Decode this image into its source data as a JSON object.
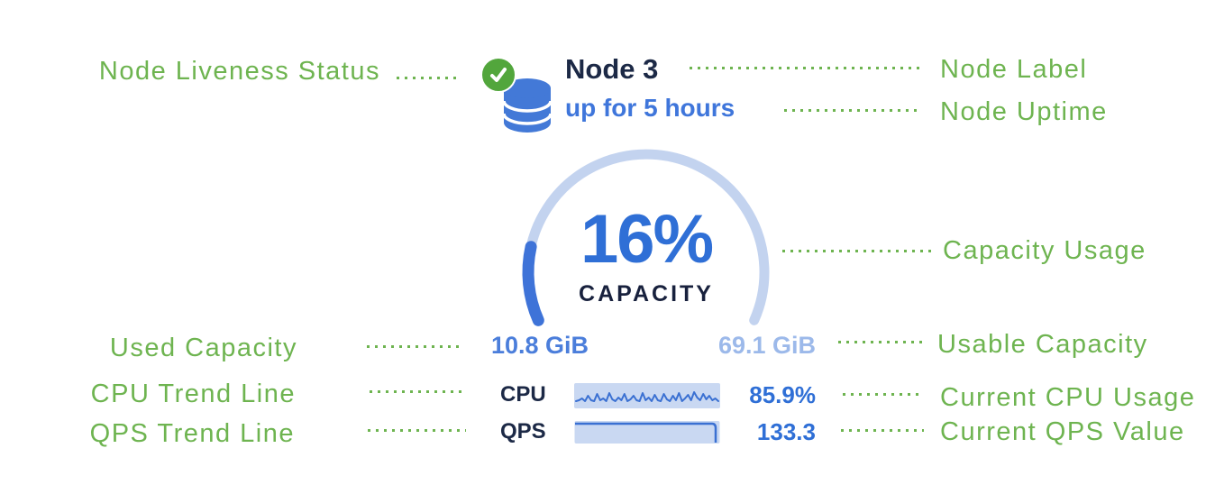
{
  "colors": {
    "green": "#6eb450",
    "navy": "#1c2946",
    "blue": "#2f6fd6",
    "blue-bright": "#3f76db",
    "blue-mid": "#4b7edb",
    "blue-light": "#9cb9ea",
    "track": "#c3d3ef",
    "fill": "#3e73d8",
    "spark-bg": "#c9d8f2",
    "spark-line": "#3a70d2",
    "icon-blue": "#4379d7",
    "check-green": "#52a63c"
  },
  "annotations": {
    "left": [
      {
        "id": "node-liveness-status",
        "label": "Node Liveness Status"
      },
      {
        "id": "used-capacity",
        "label": "Used Capacity"
      },
      {
        "id": "cpu-trend-line",
        "label": "CPU Trend Line"
      },
      {
        "id": "qps-trend-line",
        "label": "QPS Trend Line"
      }
    ],
    "right": [
      {
        "id": "node-label",
        "label": "Node Label"
      },
      {
        "id": "node-uptime",
        "label": "Node Uptime"
      },
      {
        "id": "capacity-usage",
        "label": "Capacity Usage"
      },
      {
        "id": "usable-capacity",
        "label": "Usable Capacity"
      },
      {
        "id": "current-cpu-usage",
        "label": "Current CPU Usage"
      },
      {
        "id": "current-qps-value",
        "label": "Current QPS Value"
      }
    ]
  },
  "node": {
    "label": "Node 3",
    "uptime": "up for 5 hours",
    "capacity_percent": "16%",
    "capacity_percent_value": 16,
    "capacity_label": "CAPACITY",
    "used_capacity": "10.8 GiB",
    "usable_capacity": "69.1 GiB",
    "cpu_label": "CPU",
    "cpu_value": "85.9%",
    "qps_label": "QPS",
    "qps_value": "133.3",
    "icons": [
      "liveness-check-icon",
      "database-icon"
    ]
  },
  "chart_data": [
    {
      "type": "area",
      "title": "Capacity gauge",
      "percent": 16,
      "used": "10.8 GiB",
      "usable": "69.1 GiB"
    },
    {
      "type": "line",
      "title": "CPU trend sparkline",
      "current": "85.9%",
      "spark_y": [
        20,
        19,
        17,
        20,
        14,
        19,
        20,
        12,
        19,
        17,
        20,
        11,
        18,
        20,
        16,
        19,
        12,
        20,
        18,
        14,
        19,
        20,
        11,
        19,
        16,
        20,
        13,
        19,
        20,
        12,
        18,
        20,
        14,
        19,
        11,
        20,
        17,
        13,
        19,
        10,
        16,
        19,
        12,
        18,
        14,
        19,
        17,
        20
      ]
    },
    {
      "type": "area",
      "title": "QPS trend",
      "current": "133.3"
    }
  ]
}
